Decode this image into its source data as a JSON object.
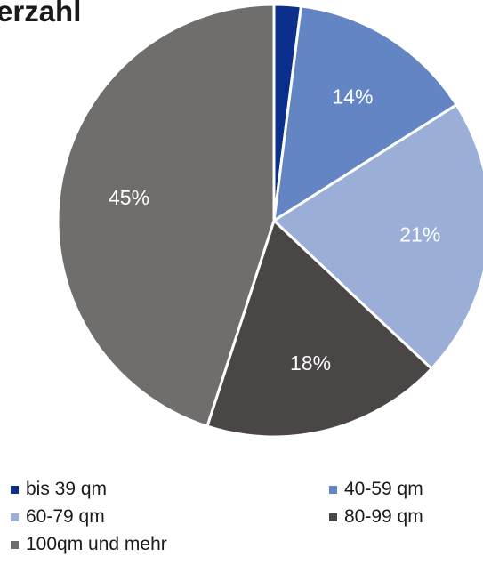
{
  "chart_data": {
    "type": "pie",
    "title": "erzahl",
    "slices": [
      {
        "label": "bis 39 qm",
        "value": 2,
        "value_label": "",
        "color": "#0b2f8a"
      },
      {
        "label": "40-59 qm",
        "value": 14,
        "value_label": "14%",
        "color": "#6385c3"
      },
      {
        "label": "60-79 qm",
        "value": 21,
        "value_label": "21%",
        "color": "#9aaed8"
      },
      {
        "label": "80-99 qm",
        "value": 18,
        "value_label": "18%",
        "color": "#4a4646"
      },
      {
        "label": "100qm und mehr",
        "value": 45,
        "value_label": "45%",
        "color": "#6f6e6c"
      }
    ],
    "legend_position": "bottom"
  }
}
